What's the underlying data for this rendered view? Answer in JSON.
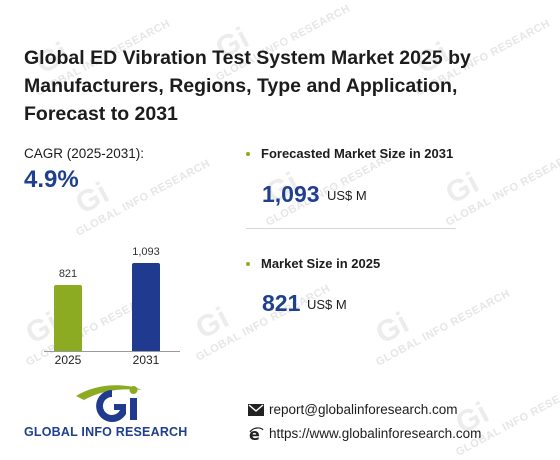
{
  "title": "Global ED Vibration Test System Market 2025 by Manufacturers, Regions, Type and Application, Forecast to 2031",
  "cagr": {
    "label": "CAGR (2025-2031):",
    "value": "4.9%"
  },
  "chart_data": {
    "type": "bar",
    "categories": [
      "2025",
      "2031"
    ],
    "values": [
      821,
      1093
    ],
    "value_labels": [
      "821",
      "1,093"
    ],
    "colors": [
      "#8cab23",
      "#1f3a8f"
    ]
  },
  "kpis": [
    {
      "label": "Forecasted Market Size in 2031",
      "value": "1,093",
      "unit": "US$ M"
    },
    {
      "label": "Market Size in 2025",
      "value": "821",
      "unit": "US$ M"
    }
  ],
  "brand": {
    "name": "GLOBAL INFO RESEARCH",
    "logo_letters": "Gi"
  },
  "contact": {
    "email": "report@globalinforesearch.com",
    "website": "https://www.globalinforesearch.com"
  },
  "colors": {
    "accent_green": "#8cab23",
    "accent_navy": "#1f3a8f",
    "dot": "#8cab23"
  },
  "icons": {
    "email": "envelope-icon",
    "web": "globe-e-icon"
  }
}
